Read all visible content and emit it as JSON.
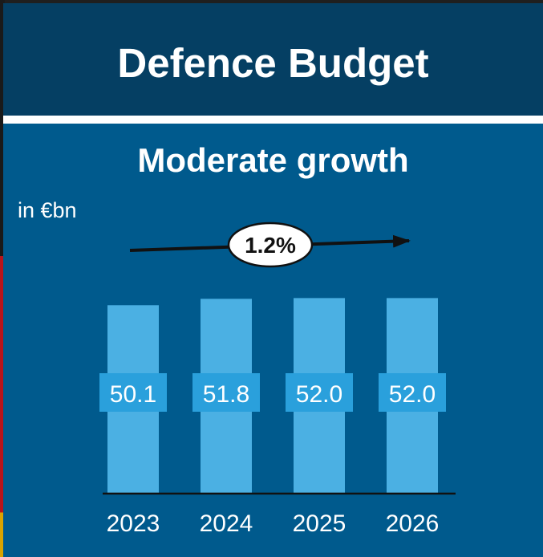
{
  "header": {
    "title": "Defence Budget"
  },
  "panel": {
    "subtitle": "Moderate growth",
    "unit": "in €bn"
  },
  "annotation": {
    "growth_label": "1.2%"
  },
  "chart_data": {
    "type": "bar",
    "categories": [
      "2023",
      "2024",
      "2025",
      "2026"
    ],
    "values": [
      50.1,
      51.8,
      52.0,
      52.0
    ],
    "value_labels": [
      "50.1",
      "51.8",
      "52.0",
      "52.0"
    ],
    "ylabel": "in €bn",
    "ylim": [
      0,
      54
    ],
    "grid": false,
    "colors": {
      "bar": "#4bb0e3",
      "value_label_bg": "#2aa0dc",
      "axis": "#111111",
      "arrow": "#111111"
    }
  }
}
